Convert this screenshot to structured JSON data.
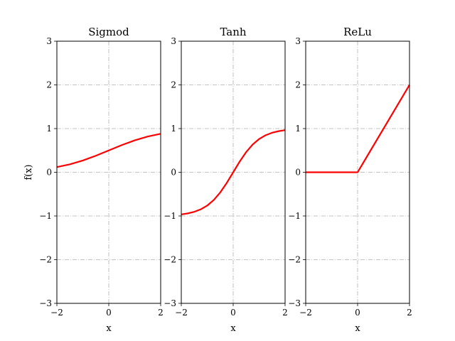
{
  "chart_data": [
    {
      "type": "line",
      "title": "Sigmod",
      "xlabel": "x",
      "ylabel": "f(x)",
      "xlim": [
        -2,
        2
      ],
      "ylim": [
        -3,
        3
      ],
      "xticks": [
        -2,
        0,
        2
      ],
      "yticks": [
        -3,
        -2,
        -1,
        0,
        1,
        2,
        3
      ],
      "xtick_labels": [
        "−2",
        "0",
        "2"
      ],
      "ytick_labels": [
        "−3",
        "−2",
        "−1",
        "0",
        "1",
        "2",
        "3"
      ],
      "grid": true,
      "series": [
        {
          "color": "#ff0000",
          "x": [
            -2,
            -1.5,
            -1,
            -0.5,
            0,
            0.5,
            1,
            1.5,
            2
          ],
          "y": [
            0.119,
            0.182,
            0.269,
            0.378,
            0.5,
            0.622,
            0.731,
            0.818,
            0.881
          ]
        }
      ]
    },
    {
      "type": "line",
      "title": "Tanh",
      "xlabel": "x",
      "ylabel": "",
      "xlim": [
        -2,
        2
      ],
      "ylim": [
        -3,
        3
      ],
      "xticks": [
        -2,
        0,
        2
      ],
      "yticks": [
        -3,
        -2,
        -1,
        0,
        1,
        2,
        3
      ],
      "xtick_labels": [
        "−2",
        "0",
        "2"
      ],
      "ytick_labels": [
        "−3",
        "−2",
        "−1",
        "0",
        "1",
        "2",
        "3"
      ],
      "grid": true,
      "series": [
        {
          "color": "#ff0000",
          "x": [
            -2,
            -1.75,
            -1.5,
            -1.25,
            -1,
            -0.75,
            -0.5,
            -0.25,
            0,
            0.25,
            0.5,
            0.75,
            1,
            1.25,
            1.5,
            1.75,
            2
          ],
          "y": [
            -0.964,
            -0.941,
            -0.905,
            -0.848,
            -0.762,
            -0.635,
            -0.462,
            -0.245,
            0,
            0.245,
            0.462,
            0.635,
            0.762,
            0.848,
            0.905,
            0.941,
            0.964
          ]
        }
      ]
    },
    {
      "type": "line",
      "title": "ReLu",
      "xlabel": "x",
      "ylabel": "",
      "xlim": [
        -2,
        2
      ],
      "ylim": [
        -3,
        3
      ],
      "xticks": [
        -2,
        0,
        2
      ],
      "yticks": [
        -3,
        -2,
        -1,
        0,
        1,
        2,
        3
      ],
      "xtick_labels": [
        "−2",
        "0",
        "2"
      ],
      "ytick_labels": [
        "−3",
        "−2",
        "−1",
        "0",
        "1",
        "2",
        "3"
      ],
      "grid": true,
      "series": [
        {
          "color": "#ff0000",
          "x": [
            -2,
            0,
            2
          ],
          "y": [
            0,
            0,
            2
          ]
        }
      ]
    }
  ]
}
